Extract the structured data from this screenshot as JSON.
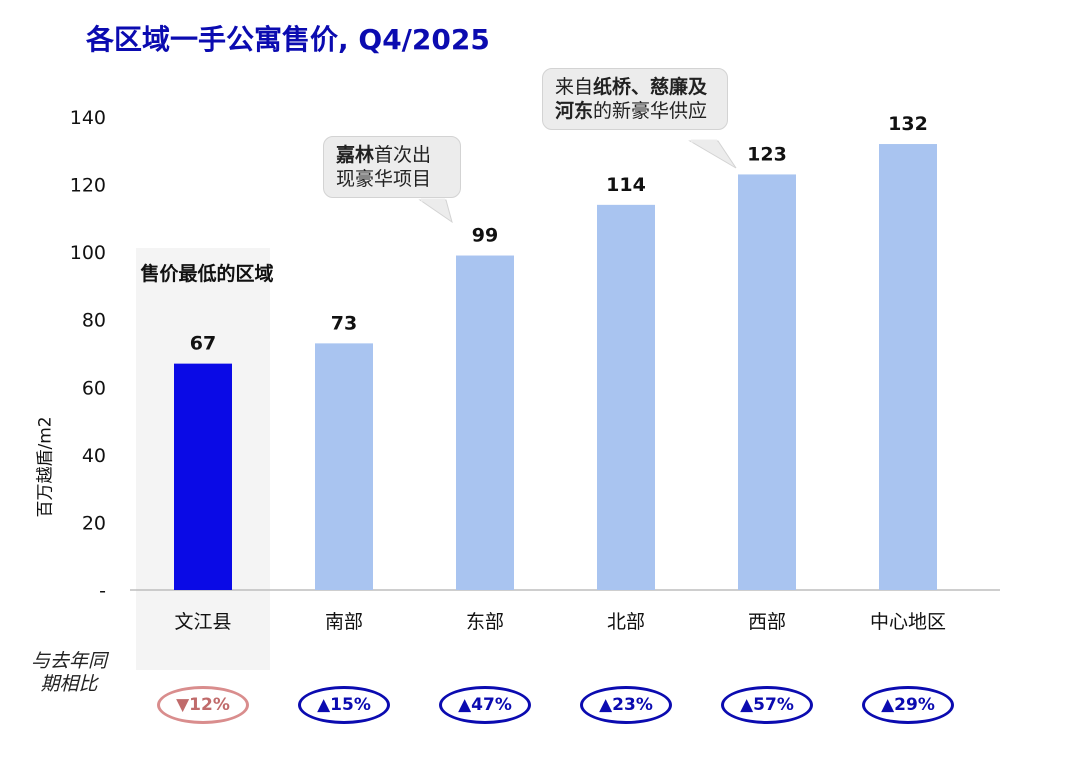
{
  "title": "各区域一手公寓售价, Q4/2025",
  "chart_data": {
    "type": "bar",
    "title": "各区域一手公寓售价, Q4/2025",
    "ylabel": "百万越盾/m2",
    "xlabel": "",
    "ylim": [
      0,
      140
    ],
    "yticks": [
      "-",
      "20",
      "40",
      "60",
      "80",
      "100",
      "120",
      "140"
    ],
    "categories": [
      "文江县",
      "南部",
      "东部",
      "北部",
      "西部",
      "中心地区"
    ],
    "values": [
      67,
      73,
      99,
      114,
      123,
      132
    ],
    "colors": [
      "#0a0ae6",
      "#a9c4f0",
      "#a9c4f0",
      "#a9c4f0",
      "#a9c4f0",
      "#a9c4f0"
    ],
    "yoy_label": "与去年同期相比",
    "yoy": [
      {
        "text": "▼12%",
        "direction": "down"
      },
      {
        "text": "▲15%",
        "direction": "up"
      },
      {
        "text": "▲47%",
        "direction": "up"
      },
      {
        "text": "▲23%",
        "direction": "up"
      },
      {
        "text": "▲57%",
        "direction": "up"
      },
      {
        "text": "▲29%",
        "direction": "up"
      }
    ],
    "annotations": {
      "lowest": "售价最低的区域",
      "callout_east": {
        "bold": "嘉林",
        "rest": "首次出现豪华项目"
      },
      "callout_west": {
        "pre": "来自",
        "bold": "纸桥、慈廉及河东",
        "rest": "的新豪华供应"
      }
    }
  }
}
